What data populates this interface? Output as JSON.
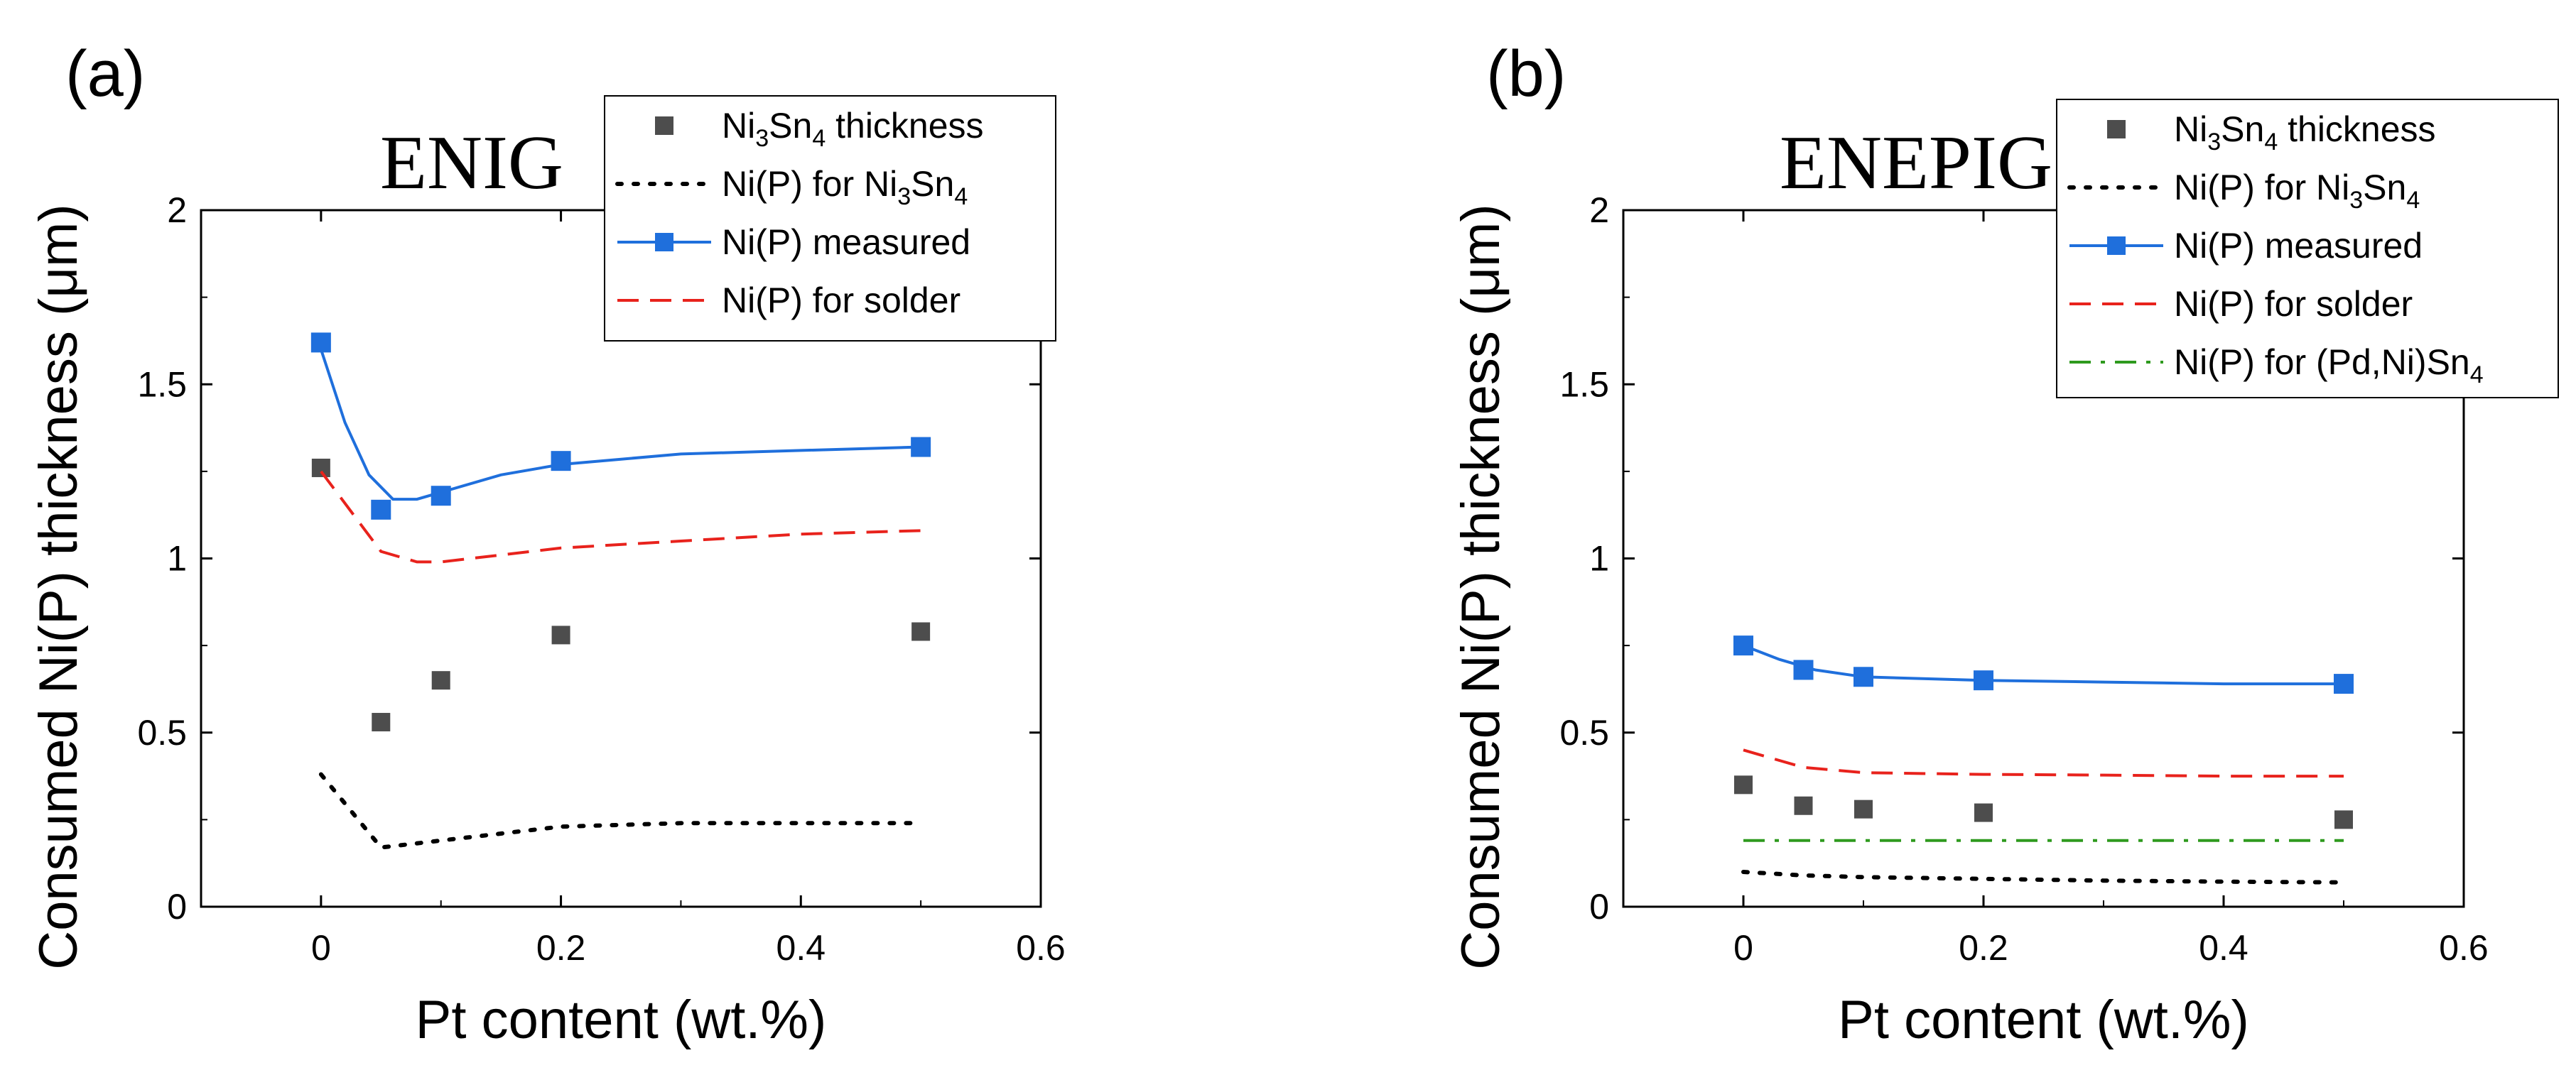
{
  "chart_data": [
    {
      "type": "scatter",
      "panel_label": "(a)",
      "title": "ENIG",
      "xlabel": "Pt content (wt.%)",
      "ylabel": "Consumed Ni(P) thickness (μm)",
      "xlim": [
        -0.1,
        0.6
      ],
      "ylim": [
        0,
        2
      ],
      "xticks": [
        0,
        0.2,
        0.4,
        0.6
      ],
      "xtick_labels": [
        "0",
        "0.2",
        "0.4",
        "0.6"
      ],
      "yticks": [
        0,
        0.5,
        1,
        1.5,
        2
      ],
      "ytick_labels": [
        "0",
        "0.5",
        "1",
        "1.5",
        "2"
      ],
      "legend_position": "top-right",
      "series": [
        {
          "key": "ni3sn4",
          "name": "Ni3Sn4 thickness",
          "label_main": "Ni",
          "label_sub1": "3",
          "label_mid": "Sn",
          "label_sub2": "4",
          "label_end": " thickness",
          "style": "marker",
          "color": "#4d4d4d",
          "x": [
            0,
            0.05,
            0.1,
            0.2,
            0.5
          ],
          "y": [
            1.26,
            0.53,
            0.65,
            0.78,
            0.79
          ]
        },
        {
          "key": "nip_ni3sn4",
          "name": "Ni(P) for Ni3Sn4",
          "label_main": "Ni(P) for Ni",
          "label_sub1": "3",
          "label_mid": "Sn",
          "label_sub2": "4",
          "label_end": "",
          "style": "dotted",
          "color": "#000000",
          "x": [
            0,
            0.05,
            0.1,
            0.15,
            0.2,
            0.3,
            0.4,
            0.5
          ],
          "y": [
            0.38,
            0.17,
            0.19,
            0.21,
            0.23,
            0.24,
            0.24,
            0.24
          ]
        },
        {
          "key": "nip_measured",
          "name": "Ni(P) measured",
          "label_main": "Ni(P) measured",
          "style": "line-marker",
          "color": "#1f6fdc",
          "x": [
            0,
            0.05,
            0.1,
            0.2,
            0.5
          ],
          "y": [
            1.62,
            1.14,
            1.18,
            1.28,
            1.32
          ],
          "curve_x": [
            0,
            0.02,
            0.04,
            0.06,
            0.08,
            0.1,
            0.15,
            0.2,
            0.3,
            0.4,
            0.5
          ],
          "curve_y": [
            1.6,
            1.39,
            1.24,
            1.17,
            1.17,
            1.19,
            1.24,
            1.27,
            1.3,
            1.31,
            1.32
          ]
        },
        {
          "key": "nip_solder",
          "name": "Ni(P) for solder",
          "label_main": "Ni(P) for solder",
          "style": "dashed",
          "color": "#e8221c",
          "x": [
            0,
            0.05,
            0.08,
            0.1,
            0.15,
            0.2,
            0.3,
            0.4,
            0.5
          ],
          "y": [
            1.25,
            1.02,
            0.99,
            0.99,
            1.01,
            1.03,
            1.05,
            1.07,
            1.08
          ]
        }
      ]
    },
    {
      "type": "scatter",
      "panel_label": "(b)",
      "title": "ENEPIG",
      "xlabel": "Pt content (wt.%)",
      "ylabel": "Consumed Ni(P) thickness (μm)",
      "xlim": [
        -0.1,
        0.6
      ],
      "ylim": [
        0,
        2
      ],
      "xticks": [
        0,
        0.2,
        0.4,
        0.6
      ],
      "xtick_labels": [
        "0",
        "0.2",
        "0.4",
        "0.6"
      ],
      "yticks": [
        0,
        0.5,
        1,
        1.5,
        2
      ],
      "ytick_labels": [
        "0",
        "0.5",
        "1",
        "1.5",
        "2"
      ],
      "legend_position": "top-right",
      "series": [
        {
          "key": "ni3sn4",
          "name": "Ni3Sn4 thickness",
          "label_main": "Ni",
          "label_sub1": "3",
          "label_mid": "Sn",
          "label_sub2": "4",
          "label_end": " thickness",
          "style": "marker",
          "color": "#4d4d4d",
          "x": [
            0,
            0.05,
            0.1,
            0.2,
            0.5
          ],
          "y": [
            0.35,
            0.29,
            0.28,
            0.27,
            0.25
          ]
        },
        {
          "key": "nip_ni3sn4",
          "name": "Ni(P) for Ni3Sn4",
          "label_main": "Ni(P) for Ni",
          "label_sub1": "3",
          "label_mid": "Sn",
          "label_sub2": "4",
          "label_end": "",
          "style": "dotted",
          "color": "#000000",
          "x": [
            0,
            0.05,
            0.1,
            0.2,
            0.3,
            0.4,
            0.5
          ],
          "y": [
            0.1,
            0.09,
            0.085,
            0.08,
            0.075,
            0.072,
            0.07
          ]
        },
        {
          "key": "nip_measured",
          "name": "Ni(P) measured",
          "label_main": "Ni(P) measured",
          "style": "line-marker",
          "color": "#1f6fdc",
          "x": [
            0,
            0.05,
            0.1,
            0.2,
            0.5
          ],
          "y": [
            0.75,
            0.68,
            0.66,
            0.65,
            0.64
          ],
          "curve_x": [
            0,
            0.03,
            0.06,
            0.1,
            0.2,
            0.3,
            0.4,
            0.5
          ],
          "curve_y": [
            0.75,
            0.71,
            0.68,
            0.66,
            0.65,
            0.645,
            0.64,
            0.64
          ]
        },
        {
          "key": "nip_solder",
          "name": "Ni(P) for solder",
          "label_main": "Ni(P) for solder",
          "style": "dashed",
          "color": "#e8221c",
          "x": [
            0,
            0.05,
            0.1,
            0.2,
            0.3,
            0.4,
            0.5
          ],
          "y": [
            0.45,
            0.4,
            0.385,
            0.38,
            0.378,
            0.375,
            0.375
          ]
        },
        {
          "key": "nip_pdnisn4",
          "name": "Ni(P) for (Pd,Ni)Sn4",
          "label_main": "Ni(P) for (Pd,Ni)Sn",
          "label_sub1": "4",
          "style": "dashdot",
          "color": "#2e9a1e",
          "x": [
            0,
            0.5
          ],
          "y": [
            0.19,
            0.19
          ]
        }
      ]
    }
  ]
}
